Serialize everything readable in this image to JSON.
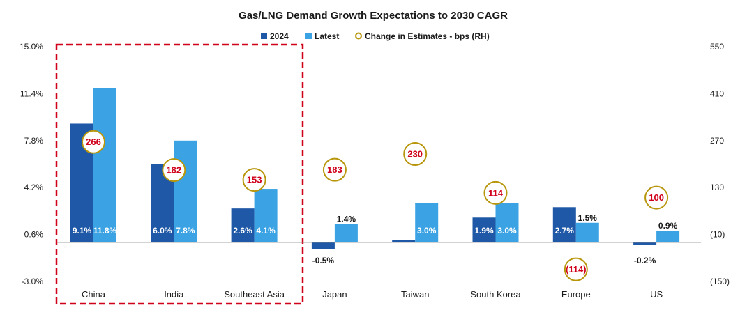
{
  "chart_data": {
    "type": "bar",
    "title": "Gas/LNG Demand Growth Expectations to 2030 CAGR",
    "categories": [
      "China",
      "India",
      "Southeast Asia",
      "Japan",
      "Taiwan",
      "South Korea",
      "Europe",
      "US"
    ],
    "series": [
      {
        "name": "2024",
        "values": [
          9.1,
          6.0,
          2.6,
          -0.5,
          0.0,
          1.9,
          2.7,
          -0.2
        ],
        "labels": [
          "9.1%",
          "6.0%",
          "2.6%",
          "-0.5%",
          "",
          "1.9%",
          "2.7%",
          "-0.2%"
        ],
        "color": "#1f58a6"
      },
      {
        "name": "Latest",
        "values": [
          11.8,
          7.8,
          4.1,
          1.4,
          3.0,
          3.0,
          1.5,
          0.9
        ],
        "labels": [
          "11.8%",
          "7.8%",
          "4.1%",
          "1.4%",
          "3.0%",
          "3.0%",
          "1.5%",
          "0.9%"
        ],
        "color": "#3ba3e3"
      },
      {
        "name": "Change in Estimates - bps (RH)",
        "type": "scatter",
        "axis": "right",
        "values": [
          266,
          182,
          153,
          183,
          230,
          114,
          -114,
          100
        ],
        "labels": [
          "266",
          "182",
          "153",
          "183",
          "230",
          "114",
          "(114)",
          "100"
        ],
        "color": "#b8960c",
        "text_color": "#d0021b"
      }
    ],
    "left_axis": {
      "ylim": [
        -3.0,
        15.0
      ],
      "ticks": [
        15.0,
        11.4,
        7.8,
        4.2,
        0.6,
        -3.0
      ],
      "tick_labels": [
        "15.0%",
        "11.4%",
        "7.8%",
        "4.2%",
        "0.6%",
        "-3.0%"
      ],
      "baseline": 0.0
    },
    "right_axis": {
      "ylim": [
        -150,
        550
      ],
      "ticks": [
        550,
        410,
        270,
        130,
        -10,
        -150
      ],
      "tick_labels": [
        "550",
        "410",
        "270",
        "130",
        "(10)",
        "(150)"
      ]
    },
    "legend": {
      "position": "top-center",
      "entries": [
        "2024",
        "Latest",
        "Change in Estimates - bps (RH)"
      ]
    },
    "highlight": {
      "categories": [
        "China",
        "India",
        "Southeast Asia"
      ],
      "style": "dashed-box",
      "color": "#d0021b"
    },
    "grid": false
  }
}
